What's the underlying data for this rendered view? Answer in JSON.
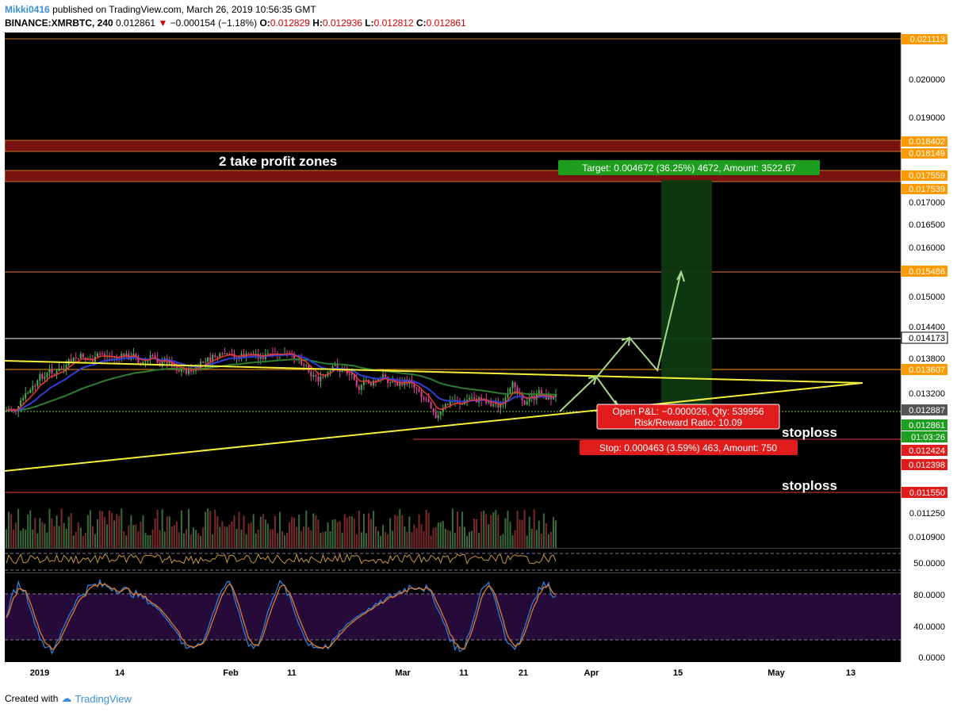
{
  "header": {
    "author": "Mikki0416",
    "published_text": "published on TradingView.com, March 26, 2019 10:56:35 GMT",
    "symbol": "BINANCE:XMRBTC, 240",
    "last": "0.012861",
    "change": "−0.000154 (−1.18%)",
    "o_label": "O:",
    "o_value": "0.012829",
    "h_label": "H:",
    "h_value": "0.012936",
    "l_label": "L:",
    "l_value": "0.012812",
    "c_label": "C:",
    "c_value": "0.012861"
  },
  "colors": {
    "background": "#000000",
    "trendline": "#f5f03a",
    "target_zone": "#1f5d1f",
    "stop_red": "#e53935",
    "target_green": "#1e9e1e",
    "price_label_orange": "#ff9900",
    "ema_red": "#e53935",
    "ema_blue": "#2f3fd8",
    "ema_green": "#2e7d32",
    "rsi_line": "#c8963c",
    "stoch_band": "#250a3a",
    "stoch_k": "#2f7fd8",
    "stoch_d": "#e07c2a",
    "arrow": "#a8d98a"
  },
  "annotations": {
    "take_profit": "2 take profit zones",
    "stoploss_1": "stoploss",
    "stoploss_2": "stoploss",
    "target_label": "Target: 0.004672 (36.25%) 4672, Amount: 3522.67",
    "open_pnl": "Open P&L: −0.000026, Qty: 539956",
    "risk_reward": "Risk/Reward Ratio: 10.09",
    "stop_label": "Stop: 0.000463 (3.59%) 463, Amount: 750"
  },
  "price_axis": {
    "ticks": [
      "0.020000",
      "0.019000",
      "0.017000",
      "0.016500",
      "0.016000",
      "0.015000",
      "0.014400",
      "0.013800",
      "0.013200",
      "0.011250",
      "0.010900"
    ],
    "labels": [
      {
        "value": "0.021113",
        "style": "orange"
      },
      {
        "value": "0.018402",
        "style": "orange"
      },
      {
        "value": "0.018149",
        "style": "orange"
      },
      {
        "value": "0.017559",
        "style": "orange"
      },
      {
        "value": "0.017539",
        "style": "orange"
      },
      {
        "value": "0.015486",
        "style": "orange"
      },
      {
        "value": "0.014173",
        "style": "white"
      },
      {
        "value": "0.013607",
        "style": "orange"
      },
      {
        "value": "0.012887",
        "style": "gray"
      },
      {
        "value": "0.012861",
        "style": "green"
      },
      {
        "value": "01:03:26",
        "style": "green"
      },
      {
        "value": "0.012424",
        "style": "red"
      },
      {
        "value": "0.012398",
        "style": "red"
      },
      {
        "value": "0.011550",
        "style": "red"
      }
    ]
  },
  "rsi_axis": {
    "ticks": [
      "50.0000"
    ]
  },
  "stoch_axis": {
    "ticks": [
      "80.0000",
      "40.0000",
      "0.0000"
    ]
  },
  "time_axis": {
    "ticks": [
      "2019",
      "14",
      "Feb",
      "11",
      "Mar",
      "11",
      "21",
      "Apr",
      "15",
      "May",
      "13"
    ]
  },
  "footer": {
    "created_with": "Created with",
    "brand": "TradingView"
  }
}
